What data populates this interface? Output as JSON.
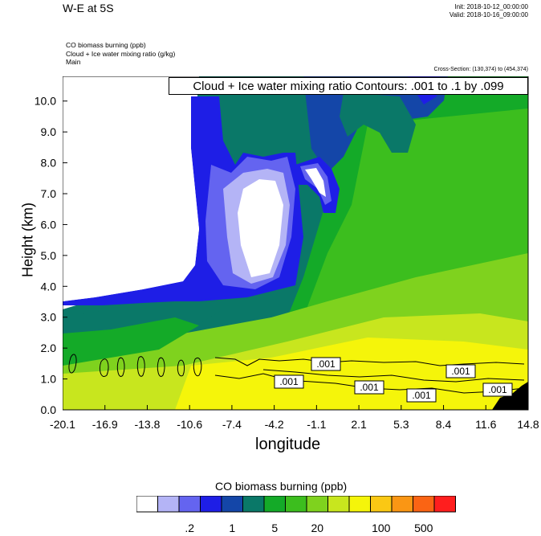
{
  "header": {
    "title": "W-E at 5S",
    "init": "Init: 2018-10-12_00:00:00",
    "valid": "Valid: 2018-10-16_09:00:00",
    "field1": "CO biomass burning   (ppb)",
    "field2": "Cloud + Ice water mixing ratio   (g/kg)",
    "field3": "Main",
    "cross_section": "Cross-Section: (130,374) to (454,374)"
  },
  "chart_data": {
    "type": "heatmap",
    "title": "W-E at 5S",
    "xlabel": "longitude",
    "ylabel": "Height (km)",
    "x_ticks": [
      "-20.1",
      "-16.9",
      "-13.8",
      "-10.6",
      "-7.4",
      "-4.2",
      "-1.1",
      "2.1",
      "5.3",
      "8.4",
      "11.6",
      "14.8"
    ],
    "xlim": [
      -20.1,
      14.8
    ],
    "y_ticks": [
      "0.0",
      "1.0",
      "2.0",
      "3.0",
      "4.0",
      "5.0",
      "6.0",
      "7.0",
      "8.0",
      "9.0",
      "10.0"
    ],
    "ylim": [
      0,
      10.8
    ],
    "overlay_title": "Cloud + Ice water mixing ratio Contours: .001 to .1 by .099",
    "contour_labels": [
      ".001",
      ".001",
      ".001",
      ".001",
      ".001",
      ".001"
    ],
    "contour_level": 0.001,
    "colorbar": {
      "title": "CO biomass burning  (ppb)",
      "colors": [
        "#ffffff",
        "#b4b4f6",
        "#6464f0",
        "#1e1ee6",
        "#1446a8",
        "#0a7868",
        "#14aa28",
        "#3cbe1e",
        "#7fd21e",
        "#c8e61e",
        "#f5f50a",
        "#fac814",
        "#fa9614",
        "#fa6414",
        "#ff1e1e"
      ],
      "tick_labels": [
        ".2",
        "1",
        "5",
        "20",
        "100",
        "500"
      ]
    }
  }
}
